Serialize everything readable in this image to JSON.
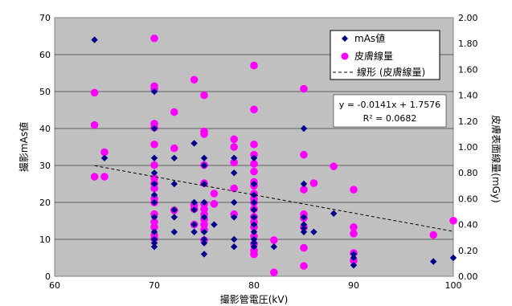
{
  "chart_data": {
    "type": "scatter",
    "xlabel": "撮影管電圧(kV)",
    "ylabel": "撮影mAs値",
    "y2label": "皮膚表面線量(mGy)",
    "xlim": [
      60,
      100
    ],
    "ylim": [
      0,
      70
    ],
    "y2lim": [
      0,
      2.0
    ],
    "x_ticks": [
      "60",
      "70",
      "80",
      "90",
      "100"
    ],
    "y_ticks": [
      "0",
      "10",
      "20",
      "30",
      "40",
      "50",
      "60",
      "70"
    ],
    "y2_ticks": [
      "0.00",
      "0.20",
      "0.40",
      "0.60",
      "0.80",
      "1.00",
      "1.20",
      "1.40",
      "1.60",
      "1.80",
      "2.00"
    ],
    "grid": true,
    "legend_position": "top-right",
    "colors": {
      "plot_bg": "#c0c0c0",
      "mas": "#00008b",
      "dose": "#ff00ff",
      "trend": "#000000"
    },
    "series": [
      {
        "name": "mAs値",
        "axis": "left",
        "marker": "diamond",
        "points": [
          [
            64,
            64
          ],
          [
            65,
            32
          ],
          [
            70,
            50
          ],
          [
            70,
            40
          ],
          [
            70,
            32
          ],
          [
            70,
            28
          ],
          [
            70,
            25
          ],
          [
            70,
            22
          ],
          [
            70,
            20
          ],
          [
            70,
            16
          ],
          [
            70,
            12
          ],
          [
            70,
            10
          ],
          [
            70,
            9
          ],
          [
            70,
            8
          ],
          [
            72,
            32
          ],
          [
            72,
            25
          ],
          [
            72,
            18
          ],
          [
            72,
            16
          ],
          [
            72,
            12
          ],
          [
            74,
            36
          ],
          [
            74,
            20
          ],
          [
            74,
            18
          ],
          [
            74,
            14
          ],
          [
            74,
            12
          ],
          [
            75,
            32
          ],
          [
            75,
            30
          ],
          [
            75,
            25
          ],
          [
            75,
            20
          ],
          [
            75,
            16
          ],
          [
            75,
            12
          ],
          [
            75,
            10
          ],
          [
            75,
            9
          ],
          [
            75,
            6
          ],
          [
            76,
            14
          ],
          [
            78,
            32
          ],
          [
            78,
            28
          ],
          [
            78,
            20
          ],
          [
            78,
            16
          ],
          [
            78,
            10
          ],
          [
            78,
            8
          ],
          [
            80,
            32
          ],
          [
            80,
            25
          ],
          [
            80,
            22
          ],
          [
            80,
            20
          ],
          [
            80,
            18
          ],
          [
            80,
            16
          ],
          [
            80,
            14
          ],
          [
            80,
            12
          ],
          [
            80,
            10
          ],
          [
            80,
            9
          ],
          [
            80,
            8
          ],
          [
            82,
            8
          ],
          [
            85,
            40
          ],
          [
            85,
            25
          ],
          [
            85,
            16
          ],
          [
            85,
            14
          ],
          [
            85,
            13
          ],
          [
            85,
            12
          ],
          [
            86,
            12
          ],
          [
            88,
            17
          ],
          [
            90,
            6
          ],
          [
            90,
            5
          ],
          [
            90,
            3
          ],
          [
            98,
            4
          ],
          [
            100,
            5
          ]
        ]
      },
      {
        "name": "皮膚線量",
        "axis": "right",
        "marker": "circle",
        "points": [
          [
            64,
            1.42
          ],
          [
            64,
            1.17
          ],
          [
            64,
            0.77
          ],
          [
            65,
            0.96
          ],
          [
            65,
            0.77
          ],
          [
            70,
            1.84
          ],
          [
            70,
            1.47
          ],
          [
            70,
            1.45
          ],
          [
            70,
            1.18
          ],
          [
            70,
            1.15
          ],
          [
            70,
            1.02
          ],
          [
            70,
            0.86
          ],
          [
            70,
            0.76
          ],
          [
            70,
            0.72
          ],
          [
            70,
            0.68
          ],
          [
            70,
            0.6
          ],
          [
            70,
            0.57
          ],
          [
            70,
            0.48
          ],
          [
            70,
            0.42
          ],
          [
            70,
            0.38
          ],
          [
            70,
            0.32
          ],
          [
            70,
            0.29
          ],
          [
            72,
            1.27
          ],
          [
            72,
            0.99
          ],
          [
            72,
            0.51
          ],
          [
            74,
            1.52
          ],
          [
            74,
            0.55
          ],
          [
            74,
            0.52
          ],
          [
            74,
            0.4
          ],
          [
            75,
            1.4
          ],
          [
            75,
            1.12
          ],
          [
            75,
            1.1
          ],
          [
            75,
            0.86
          ],
          [
            75,
            0.72
          ],
          [
            75,
            0.56
          ],
          [
            75,
            0.52
          ],
          [
            75,
            0.48
          ],
          [
            75,
            0.44
          ],
          [
            75,
            0.4
          ],
          [
            75,
            0.36
          ],
          [
            75,
            0.28
          ],
          [
            76,
            0.64
          ],
          [
            76,
            0.56
          ],
          [
            78,
            1.06
          ],
          [
            78,
            1.0
          ],
          [
            78,
            0.88
          ],
          [
            78,
            0.68
          ],
          [
            78,
            0.48
          ],
          [
            80,
            1.63
          ],
          [
            80,
            1.29
          ],
          [
            80,
            1.02
          ],
          [
            80,
            0.94
          ],
          [
            80,
            0.87
          ],
          [
            80,
            0.81
          ],
          [
            80,
            0.73
          ],
          [
            80,
            0.7
          ],
          [
            80,
            0.64
          ],
          [
            80,
            0.6
          ],
          [
            80,
            0.57
          ],
          [
            80,
            0.52
          ],
          [
            80,
            0.46
          ],
          [
            80,
            0.42
          ],
          [
            80,
            0.38
          ],
          [
            80,
            0.31
          ],
          [
            80,
            0.25
          ],
          [
            80,
            0.2
          ],
          [
            80,
            0.17
          ],
          [
            82,
            0.28
          ],
          [
            82,
            0.03
          ],
          [
            85,
            1.45
          ],
          [
            85,
            0.94
          ],
          [
            85,
            0.67
          ],
          [
            85,
            0.48
          ],
          [
            85,
            0.45
          ],
          [
            85,
            0.38
          ],
          [
            85,
            0.22
          ],
          [
            85,
            0.08
          ],
          [
            86,
            0.72
          ],
          [
            88,
            0.85
          ],
          [
            90,
            0.67
          ],
          [
            90,
            0.38
          ],
          [
            90,
            0.33
          ],
          [
            90,
            0.18
          ],
          [
            90,
            0.12
          ],
          [
            98,
            0.32
          ],
          [
            100,
            0.43
          ]
        ]
      },
      {
        "name": "線形 (皮膚線量)",
        "axis": "right",
        "type": "trendline",
        "slope": -0.0141,
        "intercept": 1.7576
      }
    ],
    "annotation": {
      "equation": "y = -0.0141x + 1.7576",
      "r_squared": "R² = 0.0682"
    }
  }
}
